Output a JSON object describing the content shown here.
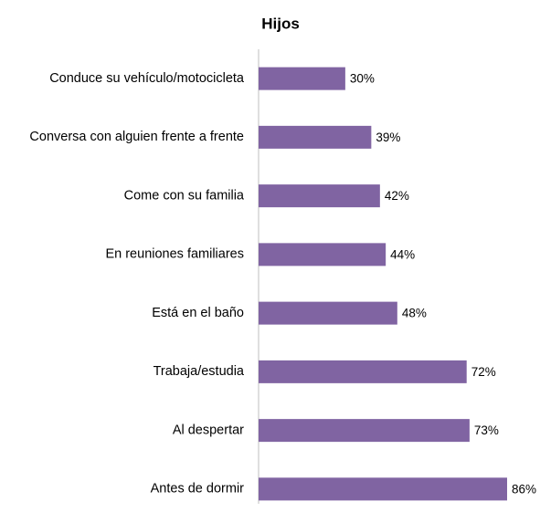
{
  "chart_data": {
    "type": "bar",
    "orientation": "horizontal",
    "title": "Hijos",
    "categories": [
      "Conduce su vehículo/motocicleta",
      "Conversa con alguien frente a frente",
      "Come con su familia",
      "En reuniones familiares",
      "Está en el baño",
      "Trabaja/estudia",
      "Al despertar",
      "Antes de dormir"
    ],
    "values": [
      30,
      39,
      42,
      44,
      48,
      72,
      73,
      86
    ],
    "value_labels": [
      "30%",
      "39%",
      "42%",
      "44%",
      "48%",
      "72%",
      "73%",
      "86%"
    ],
    "color": "#8064a2"
  }
}
